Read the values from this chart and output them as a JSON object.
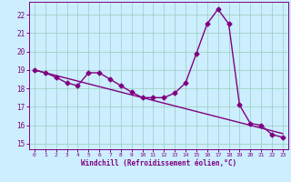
{
  "xlabel": "Windchill (Refroidissement éolien,°C)",
  "bg_color": "#cceeff",
  "line_color": "#800080",
  "grid_color": "#99ccbb",
  "x_hours": [
    0,
    1,
    2,
    3,
    4,
    5,
    6,
    7,
    8,
    9,
    10,
    11,
    12,
    13,
    14,
    15,
    16,
    17,
    18,
    19,
    20,
    21,
    22,
    23
  ],
  "temp_curve": [
    19.0,
    18.85,
    18.6,
    18.3,
    18.15,
    18.85,
    18.85,
    18.5,
    18.15,
    17.8,
    17.5,
    17.5,
    17.5,
    17.75,
    18.3,
    19.9,
    21.5,
    22.3,
    21.5,
    17.1,
    16.1,
    16.0,
    15.5,
    15.35
  ],
  "trend_line": [
    19.0,
    18.85,
    18.7,
    18.55,
    18.4,
    18.25,
    18.1,
    17.95,
    17.8,
    17.65,
    17.5,
    17.35,
    17.2,
    17.05,
    16.9,
    16.75,
    16.6,
    16.45,
    16.3,
    16.15,
    16.0,
    15.85,
    15.7,
    15.55
  ],
  "xlim": [
    -0.5,
    23.5
  ],
  "ylim": [
    14.7,
    22.7
  ],
  "yticks": [
    15,
    16,
    17,
    18,
    19,
    20,
    21,
    22
  ],
  "xticks": [
    0,
    1,
    2,
    3,
    4,
    5,
    6,
    7,
    8,
    9,
    10,
    11,
    12,
    13,
    14,
    15,
    16,
    17,
    18,
    19,
    20,
    21,
    22,
    23
  ],
  "markersize": 2.5,
  "linewidth": 1.0
}
